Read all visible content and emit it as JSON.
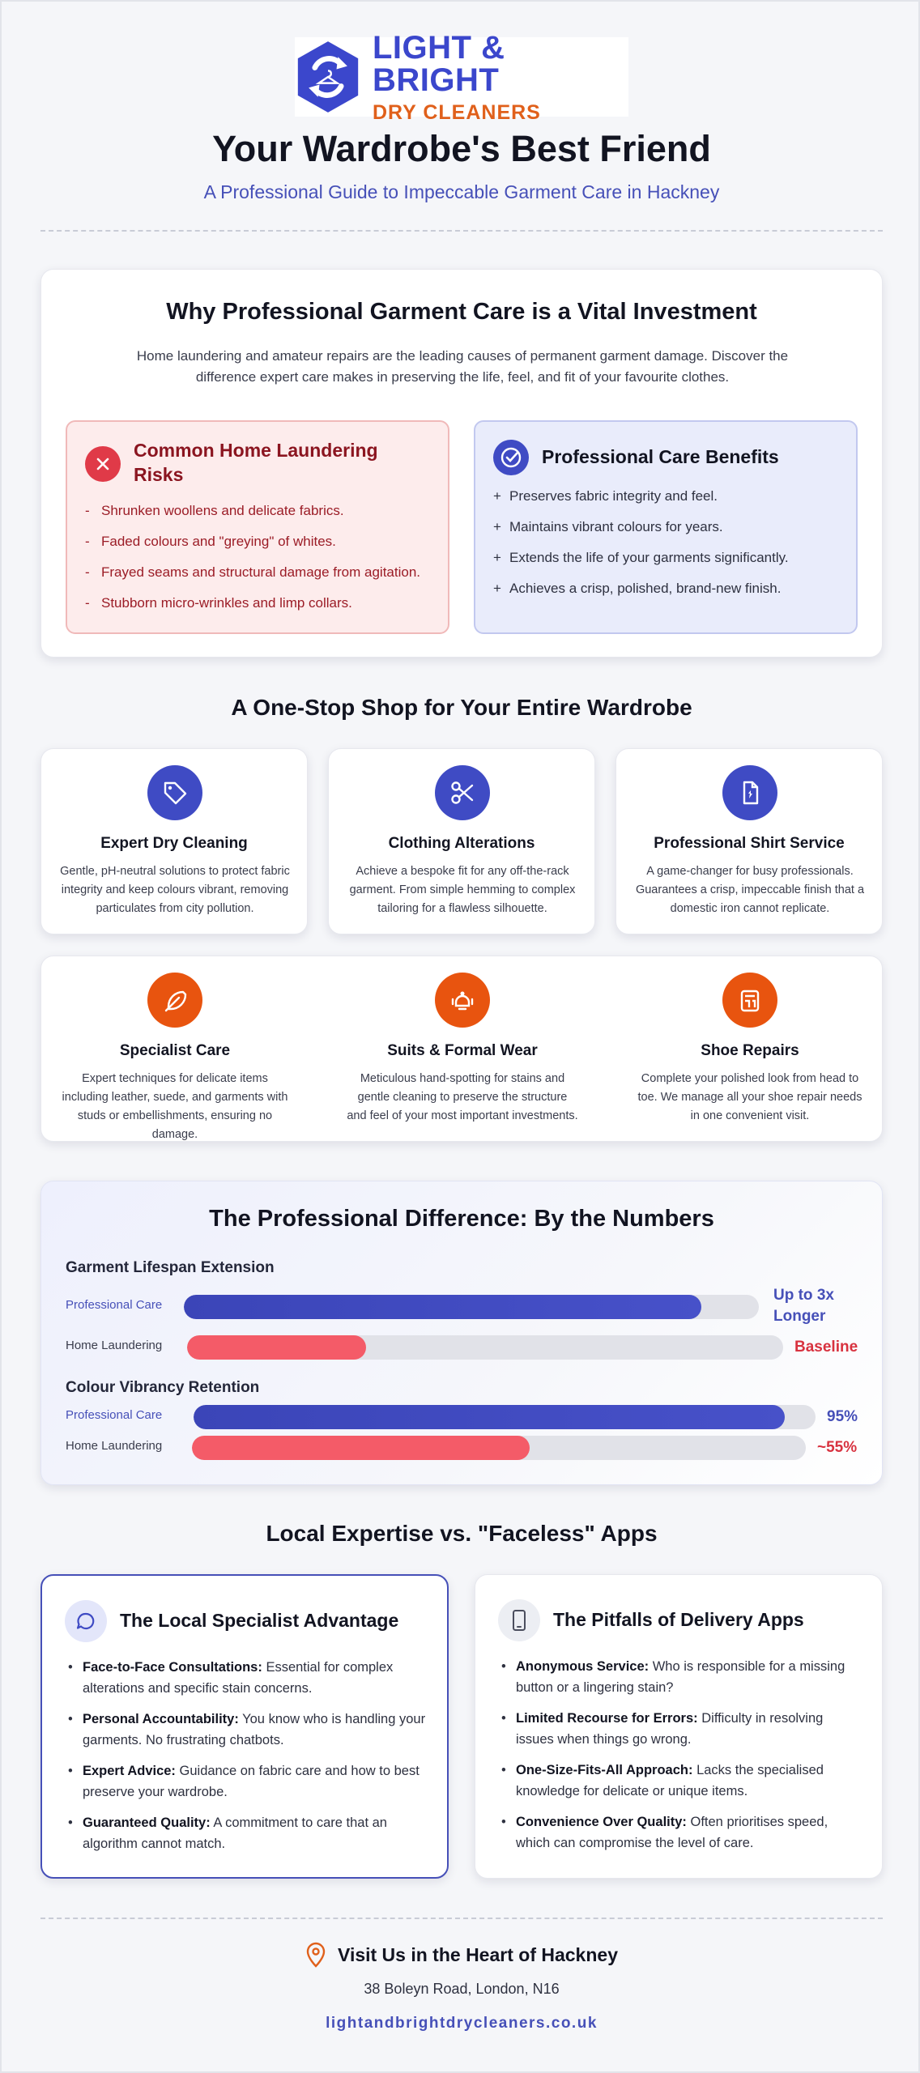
{
  "brand": {
    "name_line1": "LIGHT & BRIGHT",
    "name_line2": "DRY CLEANERS",
    "logo_icon": "recycle-hanger-icon",
    "primary_color": "#3b47cc",
    "accent_color": "#e0601b"
  },
  "hero": {
    "title": "Your Wardrobe's Best Friend",
    "subtitle": "A Professional Guide to Impeccable Garment Care in Hackney"
  },
  "investment": {
    "title": "Why Professional Garment Care is a Vital Investment",
    "text": "Home laundering and amateur repairs are the leading causes of permanent garment damage. Discover the difference expert care makes in preserving the life, feel, and fit of your favourite clothes.",
    "risks": {
      "icon": "x-circle-icon",
      "title": "Common Home Laundering Risks",
      "marker": "-",
      "items": [
        "Shrunken woollens and delicate fabrics.",
        "Faded colours and \"greying\" of whites.",
        "Frayed seams and structural damage from agitation.",
        "Stubborn micro-wrinkles and limp collars."
      ]
    },
    "benefits": {
      "icon": "check-circle-icon",
      "title": "Professional Care Benefits",
      "marker": "+",
      "items": [
        "Preserves fabric integrity and feel.",
        "Maintains vibrant colours for years.",
        "Extends the life of your garments significantly.",
        "Achieves a crisp, polished, brand-new finish."
      ]
    }
  },
  "services": {
    "title": "A One-Stop Shop for Your Entire Wardrobe",
    "items": [
      {
        "icon": "tag-icon",
        "name": "Expert Dry Cleaning",
        "desc": "Gentle, pH-neutral solutions to protect fabric integrity and keep colours vibrant, removing particulates from city pollution."
      },
      {
        "icon": "scissors-icon",
        "name": "Clothing Alterations",
        "desc": "Achieve a bespoke fit for any off-the-rack garment. From simple hemming to complex tailoring for a flawless silhouette."
      },
      {
        "icon": "shirt-icon",
        "name": "Professional Shirt Service",
        "desc": "A game-changer for busy professionals. Guarantees a crisp, impeccable finish that a domestic iron cannot replicate."
      },
      {
        "icon": "feather-icon",
        "name": "Specialist Care",
        "desc": "Expert techniques for delicate items including leather, suede, and garments with studs or embellishments, ensuring no damage."
      },
      {
        "icon": "suit-icon",
        "name": "Suits & Formal Wear",
        "desc": "Meticulous hand-spotting for stains and gentle cleaning to preserve the structure and feel of your most important investments."
      },
      {
        "icon": "shoe-icon",
        "name": "Shoe Repairs",
        "desc": "Complete your polished look from head to toe. We manage all your shoe repair needs in one convenient visit."
      }
    ]
  },
  "numbers": {
    "title": "The Professional Difference: By the Numbers",
    "metrics": [
      {
        "title": "Garment Lifespan Extension",
        "rows": [
          {
            "label": "Professional Care",
            "fraction": 0.9,
            "value": "Up to 3x Longer"
          },
          {
            "label": "Home Laundering",
            "fraction": 0.3,
            "value": "Baseline"
          }
        ]
      },
      {
        "title": "Colour Vibrancy Retention",
        "rows": [
          {
            "label": "Professional Care",
            "fraction": 0.95,
            "value": "95%"
          },
          {
            "label": "Home Laundering",
            "fraction": 0.55,
            "value": "~55%"
          }
        ]
      }
    ]
  },
  "compare": {
    "title": "Local Expertise vs. \"Faceless\" Apps",
    "local": {
      "icon": "chat-bubble-icon",
      "title": "The Local Specialist Advantage",
      "items": [
        {
          "bold": "Face-to-Face Consultations:",
          "text": "Essential for complex alterations and specific stain concerns."
        },
        {
          "bold": "Personal Accountability:",
          "text": "You know who is handling your garments. No frustrating chatbots."
        },
        {
          "bold": "Expert Advice:",
          "text": "Guidance on fabric care and how to best preserve your wardrobe."
        },
        {
          "bold": "Guaranteed Quality:",
          "text": "A commitment to care that an algorithm cannot match."
        }
      ]
    },
    "apps": {
      "icon": "smartphone-icon",
      "title": "The Pitfalls of Delivery Apps",
      "items": [
        {
          "bold": "Anonymous Service:",
          "text": "Who is responsible for a missing button or a lingering stain?"
        },
        {
          "bold": "Limited Recourse for Errors:",
          "text": "Difficulty in resolving issues when things go wrong."
        },
        {
          "bold": "One-Size-Fits-All Approach:",
          "text": "Lacks the specialised knowledge for delicate or unique items."
        },
        {
          "bold": "Convenience Over Quality:",
          "text": "Often prioritises speed, which can compromise the level of care."
        }
      ]
    }
  },
  "footer": {
    "icon": "map-pin-icon",
    "title": "Visit Us in the Heart of Hackney",
    "address": "38 Boleyn Road, London, N16",
    "url": "lightandbrightdrycleaners.co.uk"
  }
}
